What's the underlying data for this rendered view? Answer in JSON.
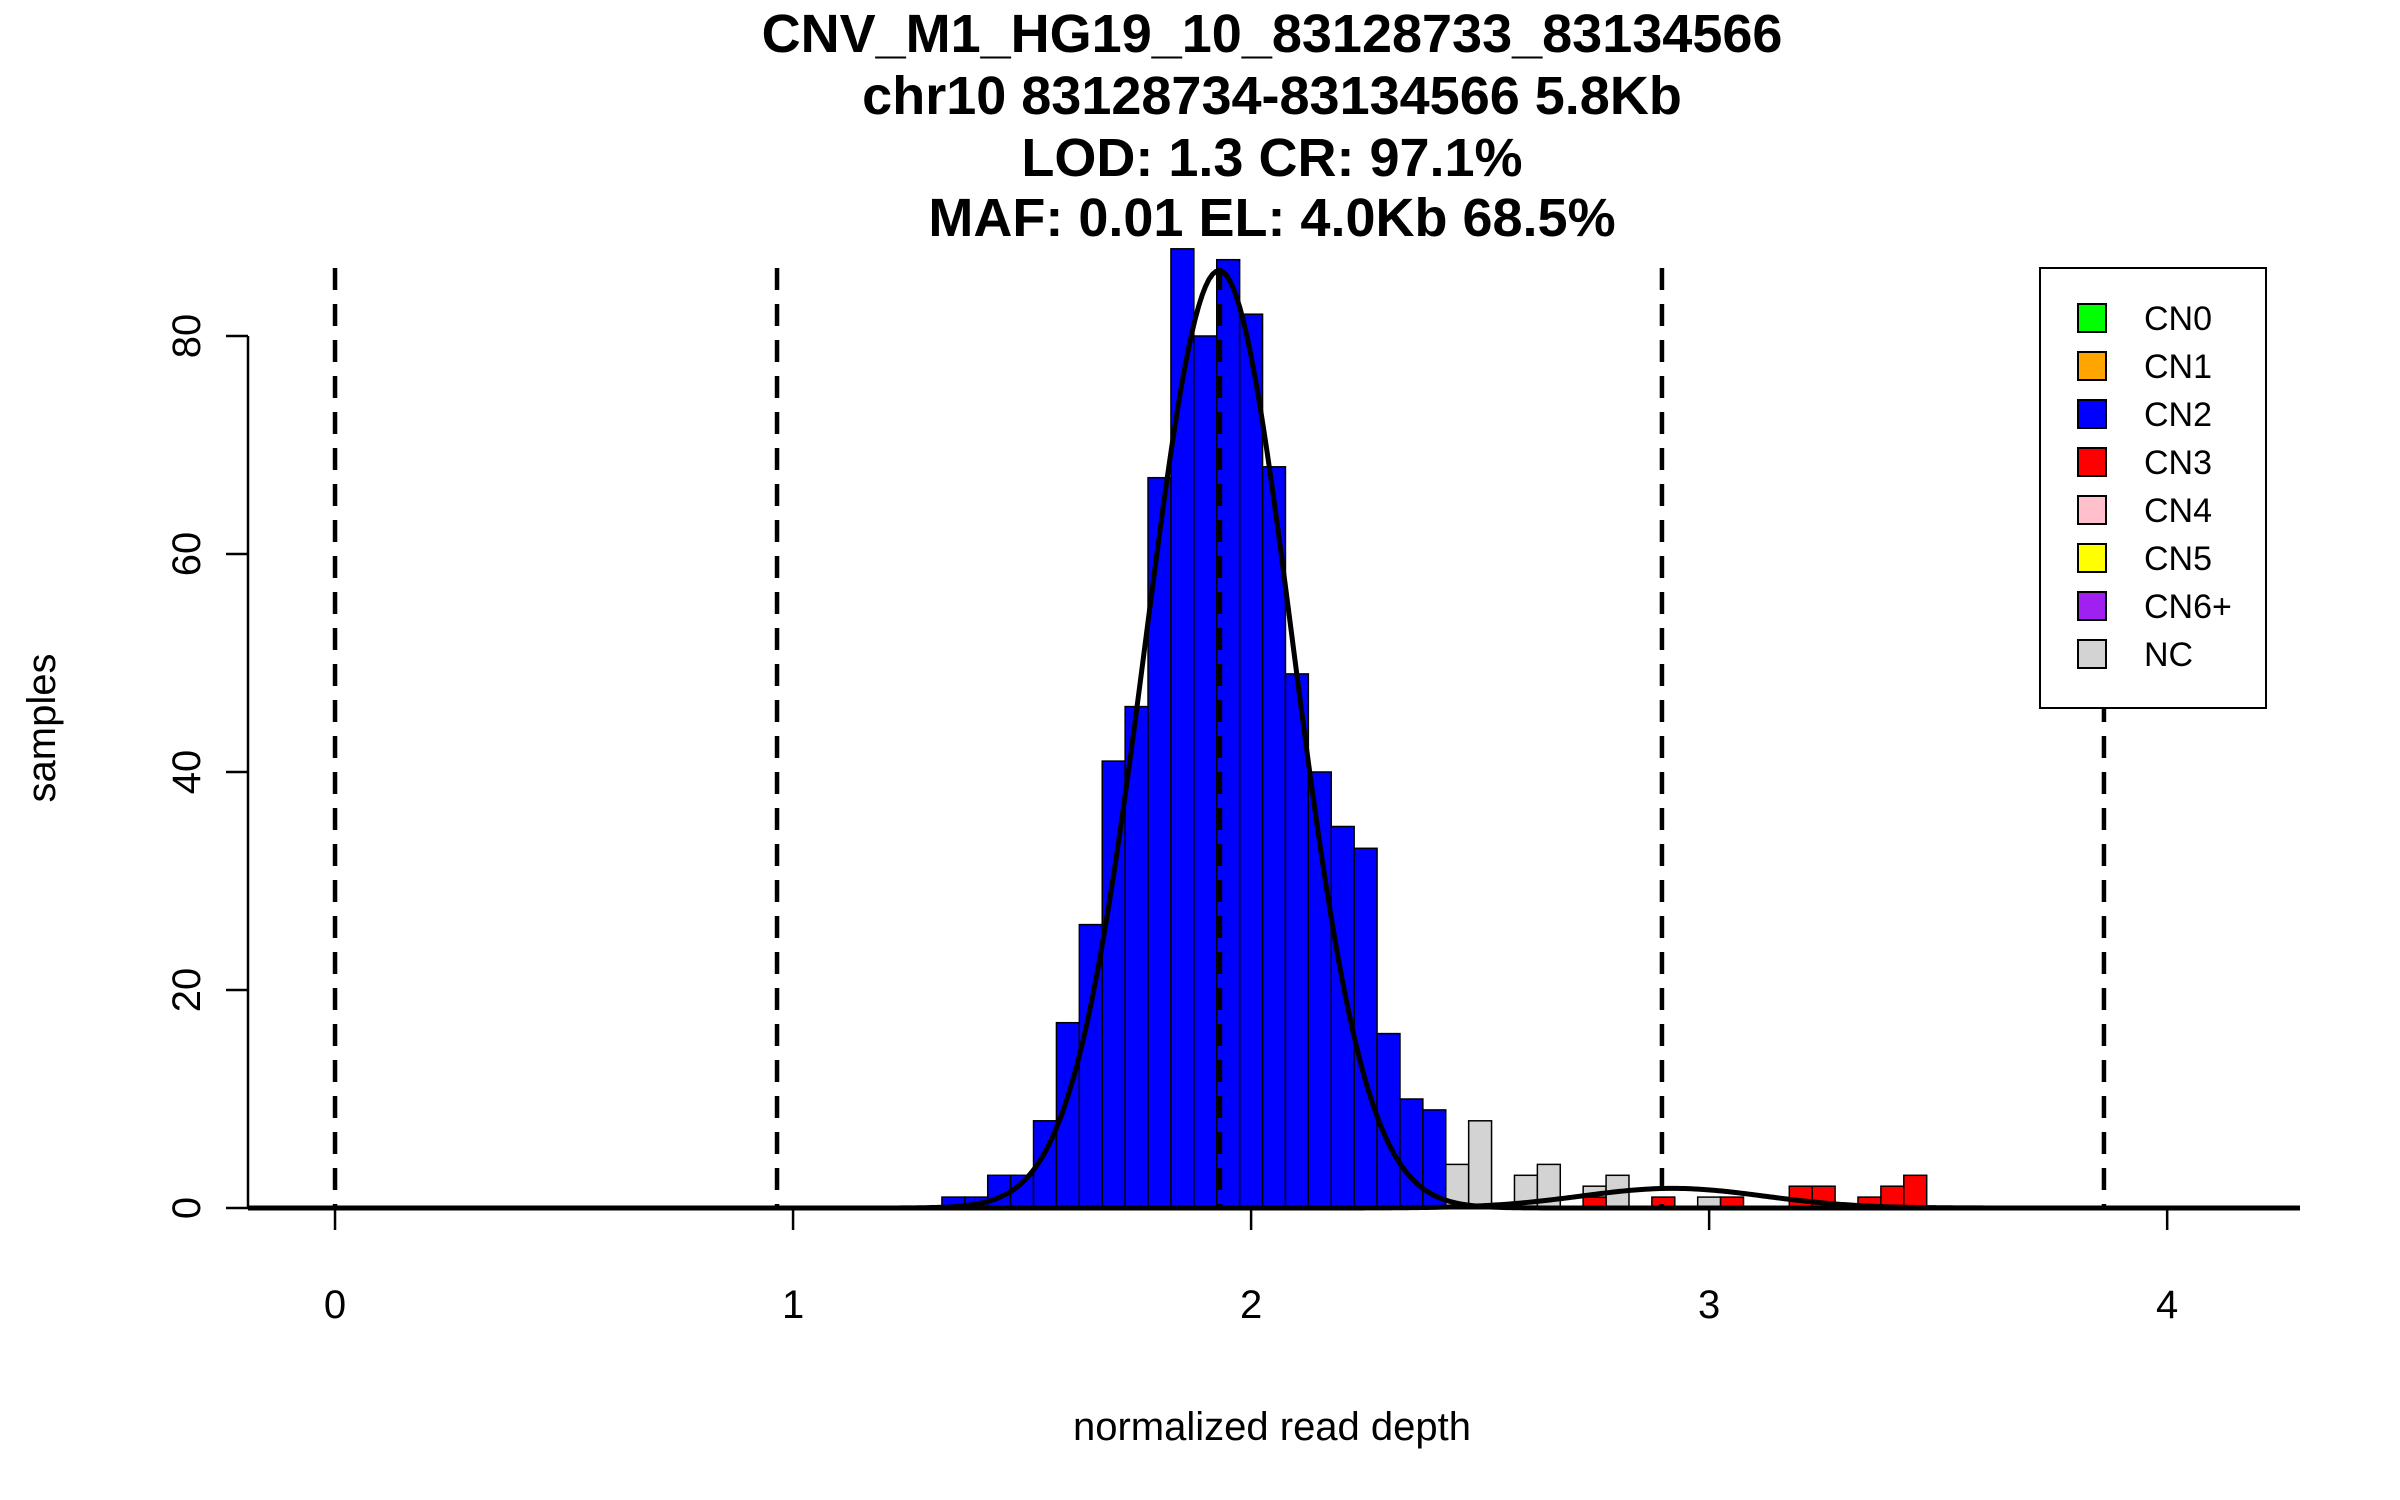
{
  "chart_data": {
    "type": "bar",
    "title_lines": [
      "CNV_M1_HG19_10_83128733_83134566",
      "chr10 83128734-83134566 5.8Kb",
      "LOD: 1.3 CR: 97.1%",
      "MAF: 0.01 EL: 4.0Kb 68.5%"
    ],
    "xlabel": "normalized read depth",
    "ylabel": "samples",
    "xlim": [
      -0.19,
      4.29
    ],
    "ylim": [
      0,
      88
    ],
    "xticks": [
      "0",
      "1",
      "2",
      "3",
      "4"
    ],
    "yticks": [
      "0",
      "20",
      "40",
      "60",
      "80"
    ],
    "bin_width": 0.05,
    "vlines": [
      0,
      0.965,
      1.932,
      2.897,
      3.862
    ],
    "colors": {
      "CN0": "#00ff00",
      "CN1": "#ffa500",
      "CN2": "#0000ff",
      "CN3": "#ff0000",
      "CN4": "#ffc0cb",
      "CN5": "#ffff00",
      "CN6+": "#a020f0",
      "NC": "#d3d3d3"
    },
    "legend": {
      "position": "top-right",
      "entries": [
        "CN0",
        "CN1",
        "CN2",
        "CN3",
        "CN4",
        "CN5",
        "CN6+",
        "NC"
      ]
    },
    "bars": [
      {
        "x": 1.35,
        "value": 1,
        "class": "CN2"
      },
      {
        "x": 1.4,
        "value": 1,
        "class": "CN2"
      },
      {
        "x": 1.45,
        "value": 3,
        "class": "CN2"
      },
      {
        "x": 1.5,
        "value": 3,
        "class": "CN2"
      },
      {
        "x": 1.55,
        "value": 8,
        "class": "CN2"
      },
      {
        "x": 1.6,
        "value": 17,
        "class": "CN2"
      },
      {
        "x": 1.65,
        "value": 26,
        "class": "CN2"
      },
      {
        "x": 1.7,
        "value": 41,
        "class": "CN2"
      },
      {
        "x": 1.75,
        "value": 46,
        "class": "CN2"
      },
      {
        "x": 1.8,
        "value": 67,
        "class": "CN2"
      },
      {
        "x": 1.85,
        "value": 88,
        "class": "CN2"
      },
      {
        "x": 1.9,
        "value": 80,
        "class": "CN2"
      },
      {
        "x": 1.95,
        "value": 87,
        "class": "CN2"
      },
      {
        "x": 2.0,
        "value": 82,
        "class": "CN2"
      },
      {
        "x": 2.05,
        "value": 68,
        "class": "CN2"
      },
      {
        "x": 2.1,
        "value": 49,
        "class": "CN2"
      },
      {
        "x": 2.15,
        "value": 40,
        "class": "CN2"
      },
      {
        "x": 2.2,
        "value": 35,
        "class": "CN2"
      },
      {
        "x": 2.25,
        "value": 33,
        "class": "CN2"
      },
      {
        "x": 2.3,
        "value": 16,
        "class": "CN2"
      },
      {
        "x": 2.35,
        "value": 10,
        "class": "CN2"
      },
      {
        "x": 2.4,
        "value": 9,
        "class": "CN2"
      },
      {
        "x": 2.45,
        "value": 4,
        "class": "NC"
      },
      {
        "x": 2.5,
        "value": 8,
        "class": "NC"
      },
      {
        "x": 2.6,
        "value": 3,
        "class": "NC"
      },
      {
        "x": 2.65,
        "value": 4,
        "class": "NC"
      },
      {
        "x": 2.75,
        "value": 2,
        "class": "NC"
      },
      {
        "x": 2.8,
        "value": 3,
        "class": "NC"
      },
      {
        "x": 2.75,
        "value": 1,
        "class": "CN3"
      },
      {
        "x": 2.9,
        "value": 1,
        "class": "CN3"
      },
      {
        "x": 3.0,
        "value": 1,
        "class": "NC"
      },
      {
        "x": 3.05,
        "value": 1,
        "class": "CN3"
      },
      {
        "x": 3.2,
        "value": 2,
        "class": "CN3"
      },
      {
        "x": 3.25,
        "value": 2,
        "class": "CN3"
      },
      {
        "x": 3.35,
        "value": 1,
        "class": "CN3"
      },
      {
        "x": 3.4,
        "value": 2,
        "class": "CN3"
      },
      {
        "x": 3.45,
        "value": 3,
        "class": "CN3"
      }
    ],
    "curves": [
      {
        "name": "",
        "mean": 1.93,
        "sd": 0.16,
        "peak": 86
      },
      {
        "name": "",
        "mean": 2.92,
        "sd": 0.2,
        "peak": 1.8
      }
    ]
  }
}
